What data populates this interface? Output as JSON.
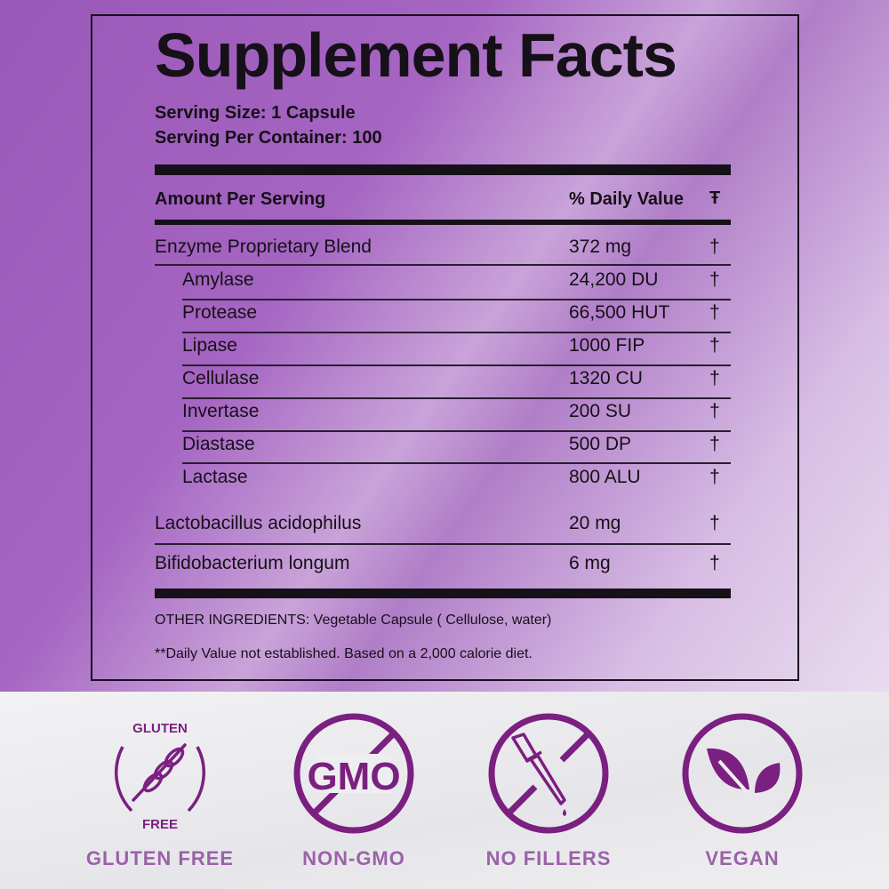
{
  "label": {
    "title": "Supplement Facts",
    "serving_size": "Serving Size: 1 Capsule",
    "servings_per_container": "Serving Per Container: 100",
    "header_amount": "Amount Per Serving",
    "header_dv": "% Daily Value",
    "header_dv_mark": "Ŧ",
    "rows": [
      {
        "name": "Enzyme Proprietary Blend",
        "amount": "372 mg",
        "dv": "†"
      },
      {
        "name": "Amylase",
        "amount": "24,200 DU",
        "dv": "†"
      },
      {
        "name": "Protease",
        "amount": "66,500 HUT",
        "dv": "†"
      },
      {
        "name": "Lipase",
        "amount": "1000 FIP",
        "dv": "†"
      },
      {
        "name": "Cellulase",
        "amount": "1320 CU",
        "dv": "†"
      },
      {
        "name": "Invertase",
        "amount": "200 SU",
        "dv": "†"
      },
      {
        "name": "Diastase",
        "amount": "500 DP",
        "dv": "†"
      },
      {
        "name": "Lactase",
        "amount": "800 ALU",
        "dv": "†"
      },
      {
        "name": "Lactobacillus acidophilus",
        "amount": "20 mg",
        "dv": "†"
      },
      {
        "name": "Bifidobacterium longum",
        "amount": "6 mg",
        "dv": "†"
      }
    ],
    "other_ingredients": "OTHER INGREDIENTS: Vegetable Capsule ( Cellulose, water)",
    "footnote": "**Daily Value not established. Based on a 2,000 calorie diet."
  },
  "badges": [
    {
      "icon": "wheat-icon",
      "label": "GLUTEN FREE",
      "ring_top": "GLUTEN",
      "ring_bottom": "FREE"
    },
    {
      "icon": "no-gmo-icon",
      "label": "NON-GMO",
      "icon_text": "GMO"
    },
    {
      "icon": "no-dropper-icon",
      "label": "NO FILLERS"
    },
    {
      "icon": "leaves-icon",
      "label": "VEGAN"
    }
  ],
  "colors": {
    "icon": "#7b1f80",
    "label": "#9b62a8",
    "background": "#a565c2"
  }
}
